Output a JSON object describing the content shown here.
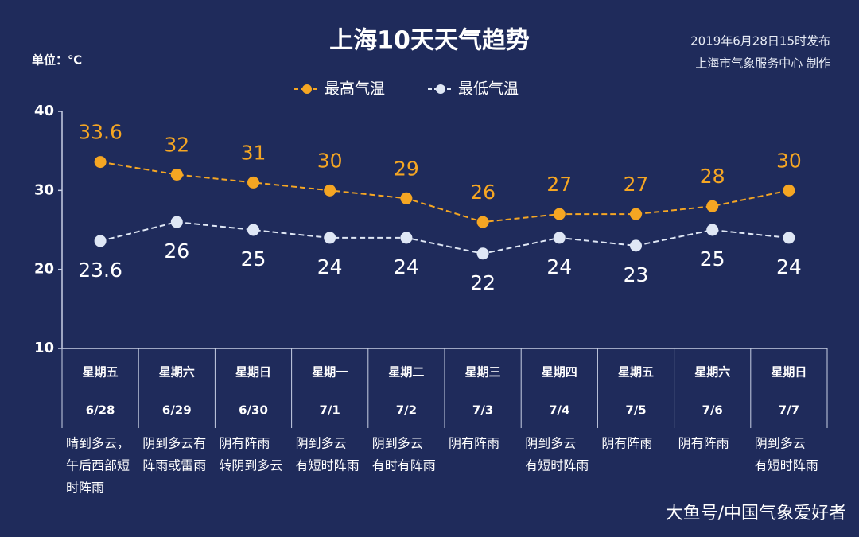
{
  "chart_data": {
    "type": "line",
    "title": "上海10天天气趋势",
    "unit_label": "单位：℃",
    "publish_info": [
      "2019年6月28日15时发布",
      "上海市气象服务中心  制作"
    ],
    "categories": [
      "星期五",
      "星期六",
      "星期日",
      "星期一",
      "星期二",
      "星期三",
      "星期四",
      "星期五",
      "星期六",
      "星期日"
    ],
    "dates": [
      "6/28",
      "6/29",
      "6/30",
      "7/1",
      "7/2",
      "7/3",
      "7/4",
      "7/5",
      "7/6",
      "7/7"
    ],
    "descriptions": [
      [
        "晴到多云，",
        "午后西部短",
        "时阵雨"
      ],
      [
        "阴到多云有",
        "阵雨或雷雨"
      ],
      [
        "阴有阵雨",
        "转阴到多云"
      ],
      [
        "阴到多云",
        "有短时阵雨"
      ],
      [
        "阴到多云",
        "有时有阵雨"
      ],
      [
        "阴有阵雨"
      ],
      [
        "阴到多云",
        "有短时阵雨"
      ],
      [
        "阴有阵雨"
      ],
      [
        "阴有阵雨"
      ],
      [
        "阴到多云",
        "有短时阵雨"
      ]
    ],
    "series": [
      {
        "name": "最高气温",
        "color": "#f5a623",
        "values": [
          33.6,
          32,
          31,
          30,
          29,
          26,
          27,
          27,
          28,
          30
        ]
      },
      {
        "name": "最低气温",
        "color": "#dfe7f5",
        "values": [
          23.6,
          26,
          25,
          24,
          24,
          22,
          24,
          23,
          25,
          24
        ]
      }
    ],
    "ylim": [
      10,
      40
    ],
    "yticks": [
      10,
      20,
      30,
      40
    ],
    "watermark": "大鱼号/中国气象爱好者"
  }
}
